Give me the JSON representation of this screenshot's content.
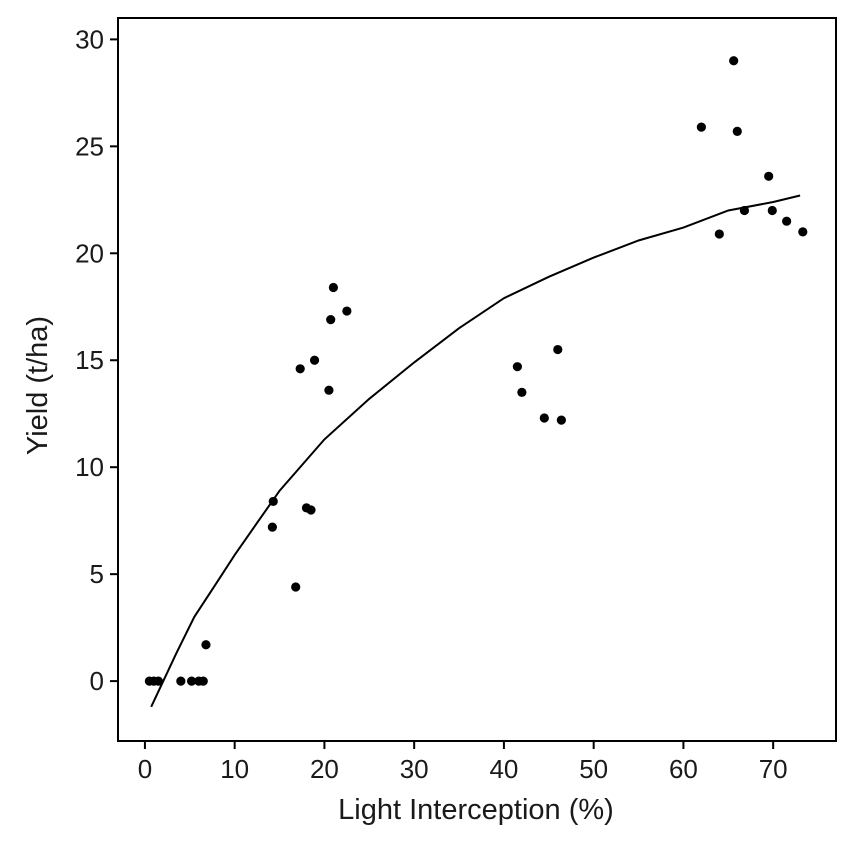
{
  "chart_data": {
    "type": "scatter",
    "title": "",
    "xlabel": "Light Interception (%)",
    "ylabel": "Yield (t/ha)",
    "xlim": [
      -3,
      77
    ],
    "ylim": [
      -2.8,
      31
    ],
    "xticks": [
      0,
      10,
      20,
      30,
      40,
      50,
      60,
      70
    ],
    "yticks": [
      0,
      5,
      10,
      15,
      20,
      25,
      30
    ],
    "grid": false,
    "legend": "none",
    "colors": {
      "points": "#000000",
      "fit": "#000000",
      "frame": "#000000"
    },
    "series": [
      {
        "type": "scatter",
        "points": [
          [
            0.5,
            0
          ],
          [
            1.0,
            0
          ],
          [
            1.5,
            0
          ],
          [
            4.0,
            0
          ],
          [
            5.2,
            0
          ],
          [
            6.0,
            0
          ],
          [
            6.5,
            0
          ],
          [
            6.8,
            1.7
          ],
          [
            14.2,
            7.2
          ],
          [
            14.3,
            8.4
          ],
          [
            16.8,
            4.4
          ],
          [
            17.3,
            14.6
          ],
          [
            18.0,
            8.1
          ],
          [
            18.5,
            8.0
          ],
          [
            18.9,
            15.0
          ],
          [
            20.5,
            13.6
          ],
          [
            20.7,
            16.9
          ],
          [
            21.0,
            18.4
          ],
          [
            22.5,
            17.3
          ],
          [
            41.5,
            14.7
          ],
          [
            42.0,
            13.5
          ],
          [
            44.5,
            12.3
          ],
          [
            46.0,
            15.5
          ],
          [
            46.4,
            12.2
          ],
          [
            62.0,
            25.9
          ],
          [
            64.0,
            20.9
          ],
          [
            65.6,
            29.0
          ],
          [
            66.0,
            25.7
          ],
          [
            66.8,
            22.0
          ],
          [
            69.5,
            23.6
          ],
          [
            69.9,
            22.0
          ],
          [
            71.5,
            21.5
          ],
          [
            73.3,
            21.0
          ]
        ]
      },
      {
        "type": "line",
        "points": [
          [
            0.7,
            -1.2
          ],
          [
            3.5,
            1.3
          ],
          [
            5.5,
            3.0
          ],
          [
            8.0,
            4.6
          ],
          [
            10.0,
            5.9
          ],
          [
            15.0,
            8.9
          ],
          [
            20.0,
            11.3
          ],
          [
            25.0,
            13.2
          ],
          [
            30.0,
            14.9
          ],
          [
            35.0,
            16.5
          ],
          [
            40.0,
            17.9
          ],
          [
            45.0,
            18.9
          ],
          [
            50.0,
            19.8
          ],
          [
            55.0,
            20.6
          ],
          [
            60.0,
            21.2
          ],
          [
            65.0,
            22.0
          ],
          [
            70.0,
            22.4
          ],
          [
            73.0,
            22.7
          ]
        ]
      }
    ]
  }
}
